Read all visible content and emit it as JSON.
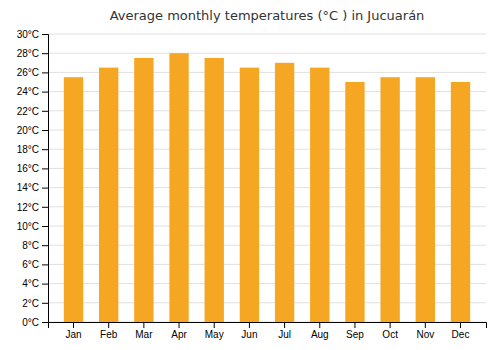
{
  "chart_data": {
    "type": "bar",
    "title": "Average monthly temperatures (°C ) in Jucuarán",
    "categories": [
      "Jan",
      "Feb",
      "Mar",
      "Apr",
      "May",
      "Jun",
      "Jul",
      "Aug",
      "Sep",
      "Oct",
      "Nov",
      "Dec"
    ],
    "values": [
      25.5,
      26.5,
      27.5,
      28.0,
      27.5,
      26.5,
      27.0,
      26.5,
      25.0,
      25.5,
      25.5,
      25.0
    ],
    "color": "#F5A623",
    "ylim": [
      0,
      30
    ],
    "yticks": [
      {
        "value": 0,
        "label": "0°C"
      },
      {
        "value": 2,
        "label": "2°C"
      },
      {
        "value": 4,
        "label": "4°C"
      },
      {
        "value": 6,
        "label": "6°C"
      },
      {
        "value": 8,
        "label": "8°C"
      },
      {
        "value": 10,
        "label": "10°C"
      },
      {
        "value": 12,
        "label": "12°C"
      },
      {
        "value": 14,
        "label": "14°C"
      },
      {
        "value": 16,
        "label": "16°C"
      },
      {
        "value": 18,
        "label": "18°C"
      },
      {
        "value": 20,
        "label": "20°C"
      },
      {
        "value": 22,
        "label": "22°C"
      },
      {
        "value": 24,
        "label": "24°C"
      },
      {
        "value": 26,
        "label": "26°C"
      },
      {
        "value": 28,
        "label": "28°C"
      },
      {
        "value": 30,
        "label": "30°C"
      }
    ],
    "grid": true
  }
}
